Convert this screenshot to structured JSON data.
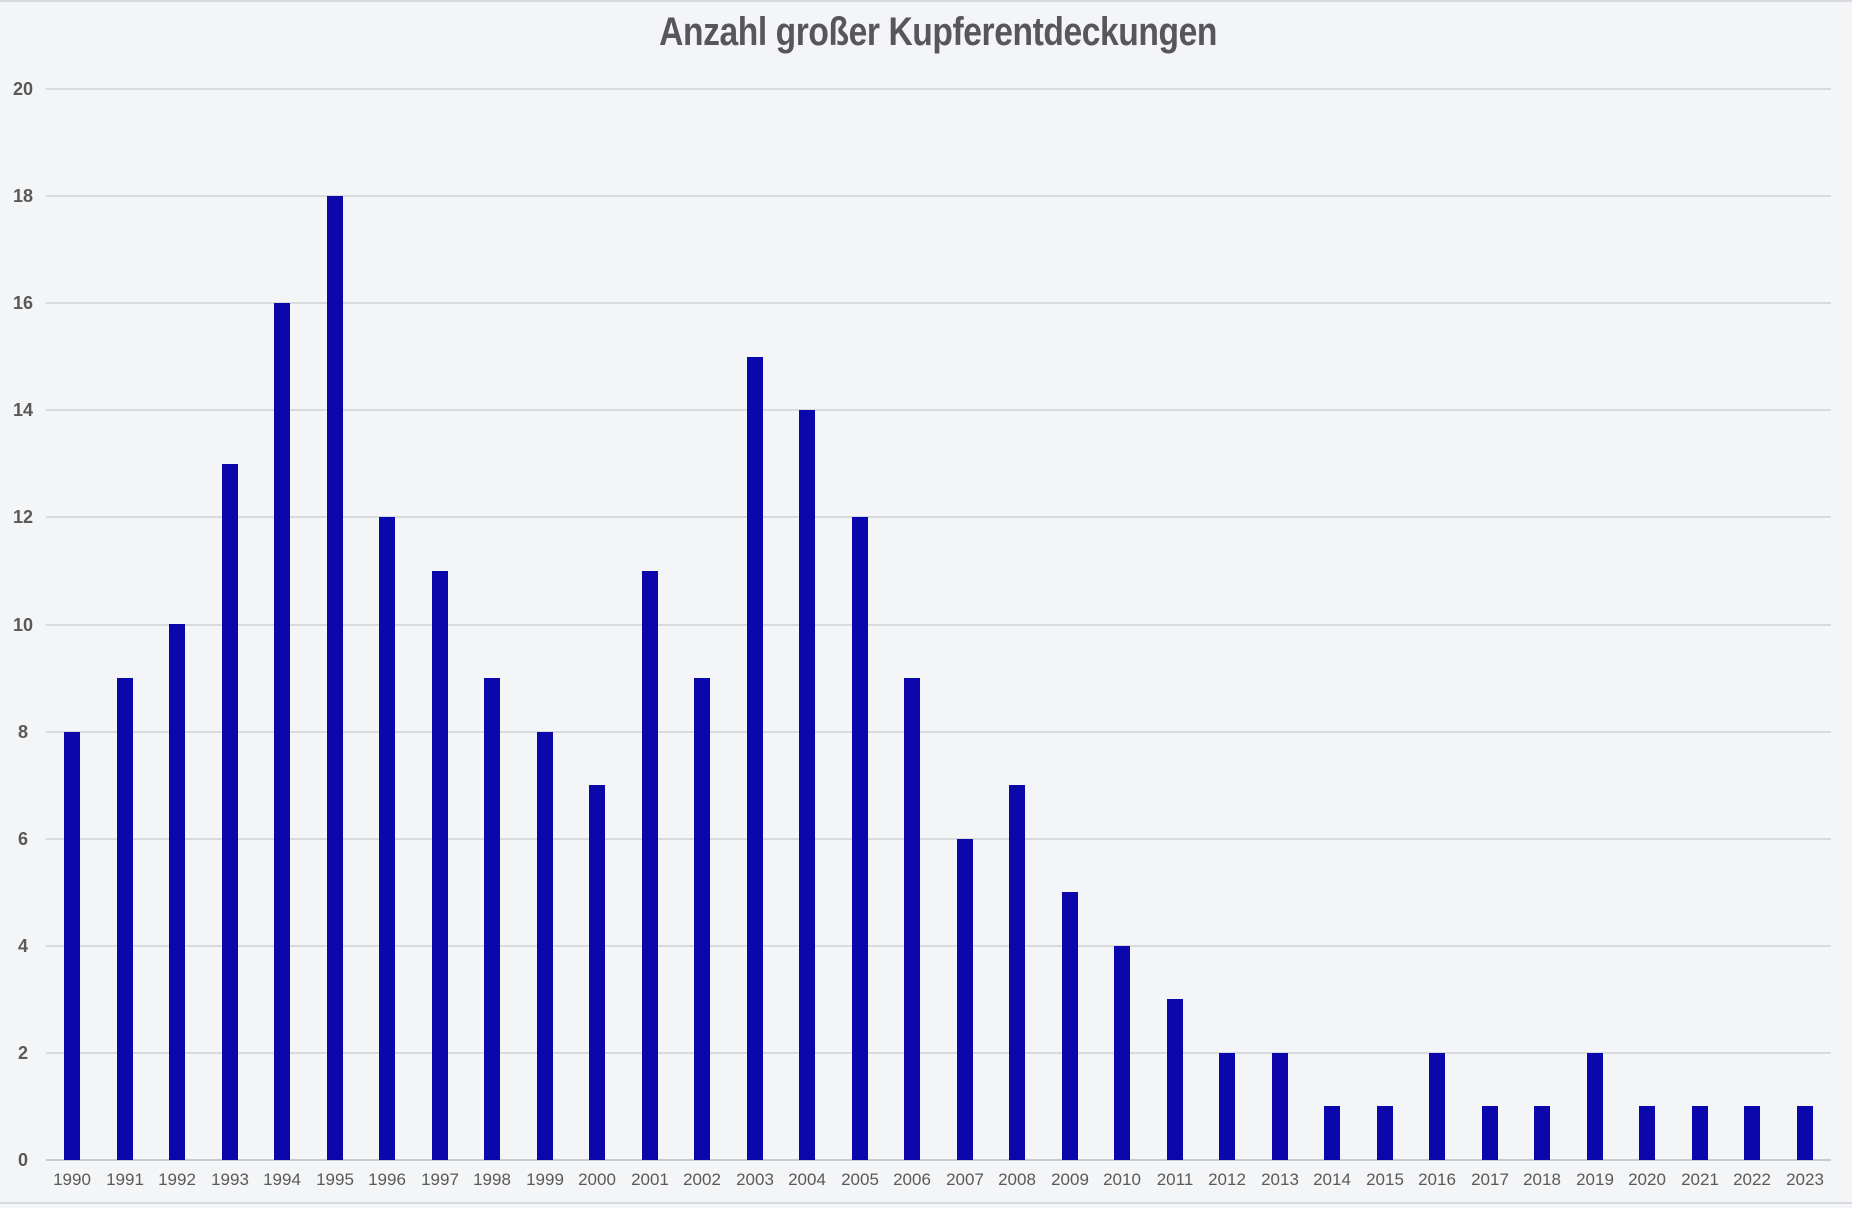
{
  "chart_data": {
    "type": "bar",
    "title": "Anzahl großer Kupferentdeckungen",
    "categories": [
      "1990",
      "1991",
      "1992",
      "1993",
      "1994",
      "1995",
      "1996",
      "1997",
      "1998",
      "1999",
      "2000",
      "2001",
      "2002",
      "2003",
      "2004",
      "2005",
      "2006",
      "2007",
      "2008",
      "2009",
      "2010",
      "2011",
      "2012",
      "2013",
      "2014",
      "2015",
      "2016",
      "2017",
      "2018",
      "2019",
      "2020",
      "2021",
      "2022",
      "2023"
    ],
    "values": [
      8,
      9,
      10,
      13,
      16,
      18,
      12,
      11,
      9,
      8,
      7,
      11,
      9,
      15,
      14,
      12,
      9,
      6,
      7,
      5,
      4,
      3,
      2,
      2,
      1,
      1,
      2,
      1,
      1,
      2,
      1,
      1,
      1,
      1
    ],
    "xlabel": "",
    "ylabel": "",
    "ylim": [
      0,
      20
    ],
    "ytick_step": 2,
    "ytick_labels": [
      "0",
      "2",
      "4",
      "6",
      "8",
      "10",
      "12",
      "14",
      "16",
      "18",
      "20"
    ],
    "grid": true,
    "legend": "none"
  },
  "colors": {
    "background": "#f4f5f7",
    "bar": "#0b07aa",
    "gridline": "#d9dadd",
    "baseline": "#c9cacf",
    "title": "#57575a",
    "tick_label": "#595959",
    "edge_line": "#d7d9de"
  }
}
